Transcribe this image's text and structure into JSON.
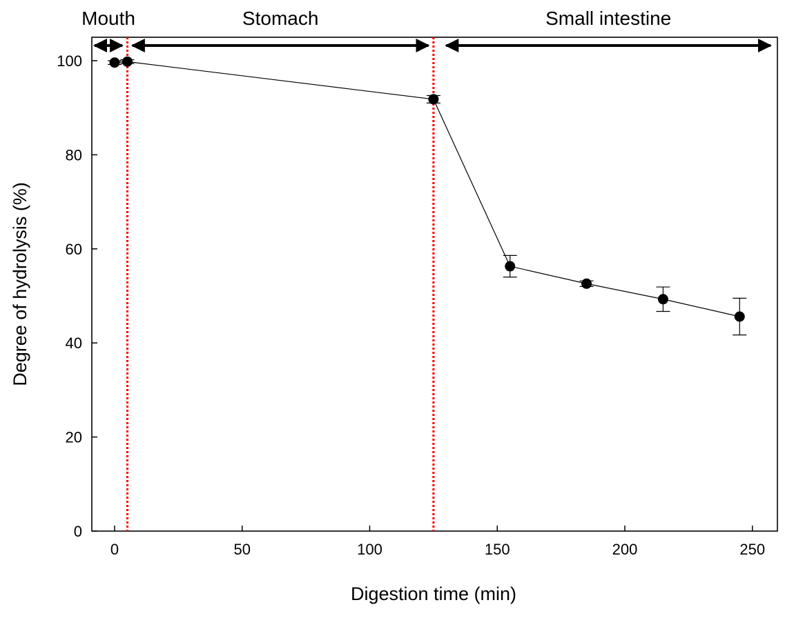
{
  "chart_data": {
    "type": "line",
    "title": "",
    "xlabel": "Digestion time (min)",
    "ylabel": "Degree of hydrolysis (%)",
    "xlim": [
      -9,
      260
    ],
    "ylim": [
      0,
      105
    ],
    "xticks": [
      0,
      50,
      100,
      150,
      200,
      250
    ],
    "yticks": [
      0,
      20,
      40,
      60,
      80,
      100
    ],
    "grid": false,
    "series": [
      {
        "x": [
          0,
          5,
          125,
          155,
          185,
          215,
          245
        ],
        "y": [
          99.6,
          99.8,
          91.8,
          56.3,
          52.6,
          49.3,
          45.6
        ],
        "error": [
          0.4,
          0.4,
          0.8,
          2.3,
          0.6,
          2.6,
          3.9
        ],
        "color": "#000000"
      }
    ],
    "phase_boundaries": [
      {
        "x": 5,
        "color": "#ff0000",
        "style": "dotted"
      },
      {
        "x": 125,
        "color": "#ff0000",
        "style": "dotted"
      }
    ],
    "phases": [
      {
        "label": "Mouth",
        "x_start": -9,
        "x_end": 3
      },
      {
        "label": "Stomach",
        "x_start": 7,
        "x_end": 123
      },
      {
        "label": "Small intestine",
        "x_start": 130,
        "x_end": 258
      }
    ]
  }
}
